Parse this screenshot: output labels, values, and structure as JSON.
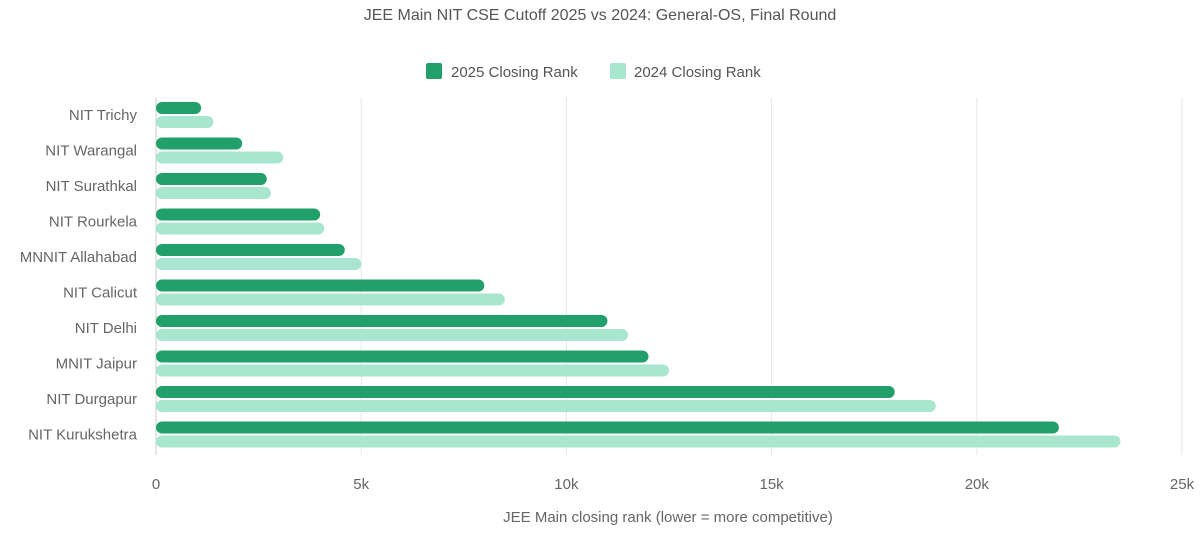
{
  "chart_data": {
    "type": "bar",
    "orientation": "horizontal",
    "title": "JEE Main NIT CSE Cutoff 2025 vs 2024: General-OS, Final Round",
    "categories": [
      "NIT Trichy",
      "NIT Warangal",
      "NIT Surathkal",
      "NIT Rourkela",
      "MNNIT Allahabad",
      "NIT Calicut",
      "NIT Delhi",
      "MNIT Jaipur",
      "NIT Durgapur",
      "NIT Kurukshetra"
    ],
    "series": [
      {
        "name": "2025 Closing Rank",
        "color": "#22a06b",
        "values": [
          1100,
          2100,
          2700,
          4000,
          4600,
          8000,
          11000,
          12000,
          18000,
          22000
        ]
      },
      {
        "name": "2024 Closing Rank",
        "color": "#a8e6cf",
        "values": [
          1400,
          3100,
          2800,
          4100,
          5000,
          8500,
          11500,
          12500,
          19000,
          23500
        ]
      }
    ],
    "xlabel": "JEE Main closing rank (lower = more competitive)",
    "ylabel": "",
    "xlim": [
      0,
      25000
    ],
    "ticks": [
      "0",
      "5k",
      "10k",
      "15k",
      "20k",
      "25k"
    ],
    "tick_values": [
      0,
      5000,
      10000,
      15000,
      20000,
      25000
    ],
    "grid": true,
    "legend_position": "top-center"
  }
}
